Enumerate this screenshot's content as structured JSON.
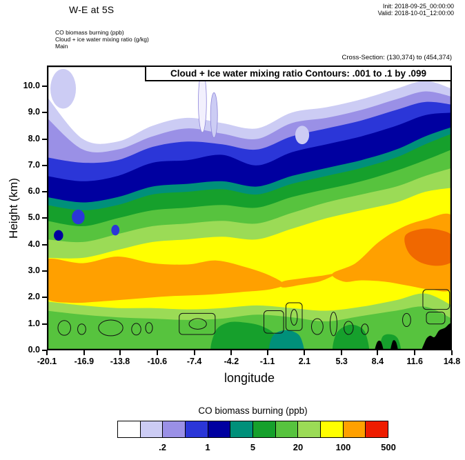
{
  "header": {
    "title": "W-E at 5S",
    "init": "Init: 2018-09-25_00:00:00",
    "valid": "Valid: 2018-10-01_12:00:00",
    "legend_lines": [
      "CO biomass burning (ppb)",
      "Cloud + ice water mixing ratio (g/kg)",
      "Main"
    ],
    "cross_section": "Cross-Section: (130,374) to (454,374)"
  },
  "plot": {
    "inner_title": "Cloud + Ice water mixing ratio Contours: .001 to .1 by .099",
    "xlabel": "longitude",
    "ylabel": "Height (km)"
  },
  "colorbar": {
    "title": "CO biomass burning  (ppb)",
    "labels": [
      ".2",
      "1",
      "5",
      "20",
      "100",
      "500"
    ],
    "colors": [
      "#ffffff",
      "#ccccf4",
      "#9a90e6",
      "#2b36d8",
      "#0000a0",
      "#00907a",
      "#16a02c",
      "#57c33e",
      "#9bdb56",
      "#ffff00",
      "#ffa000",
      "#ee1c00"
    ]
  },
  "chart_data": {
    "type": "heatmap",
    "description": "West-East vertical cross-section at 5S: CO biomass burning concentration (ppb, filled color bands, log levels) with cloud + ice water mixing ratio contours (.001 to .1 by .099 g/kg) overlaid as thin black lines; black areas are terrain",
    "xlabel": "longitude",
    "ylabel": "Height (km)",
    "xlim": [
      -20.1,
      14.8
    ],
    "ylim": [
      0,
      10.78
    ],
    "x_ticks": [
      "-20.1",
      "-16.9",
      "-13.8",
      "-10.6",
      "-7.4",
      "-4.2",
      "-1.1",
      "2.1",
      "5.3",
      "8.4",
      "11.6",
      "14.8"
    ],
    "y_ticks": [
      "0.0",
      "1.0",
      "2.0",
      "3.0",
      "4.0",
      "5.0",
      "6.0",
      "7.0",
      "8.0",
      "9.0",
      "10.0"
    ],
    "color_levels_ppb": [
      0.1,
      0.2,
      0.5,
      1,
      2,
      5,
      10,
      20,
      50,
      100,
      200,
      500
    ],
    "band_lons": [
      -20.1,
      -17,
      -14,
      -11,
      -8,
      -5,
      -2,
      1,
      4,
      7,
      10,
      12.5,
      14.8
    ],
    "layers": [
      {
        "name": "band-02-lavender",
        "type": "band",
        "color": 1,
        "top": [
          9.6,
          8.0,
          7.9,
          8.5,
          8.8,
          8.6,
          8.4,
          9.0,
          9.2,
          9.5,
          9.9,
          10.2,
          9.9
        ]
      },
      {
        "name": "lavender-top-patch",
        "type": "ellipse",
        "hex": "#ccccf4",
        "cx": -18.7,
        "cy": 9.9,
        "rx": 1.1,
        "ry": 0.75
      },
      {
        "name": "band-03-purple",
        "type": "band",
        "color": 2,
        "top": [
          8.8,
          7.6,
          7.6,
          8.1,
          8.4,
          8.2,
          8.0,
          8.6,
          8.8,
          9.1,
          9.5,
          9.8,
          9.6
        ]
      },
      {
        "name": "band-04-blue",
        "type": "band",
        "color": 3,
        "top": [
          7.3,
          7.1,
          7.2,
          7.7,
          7.9,
          7.8,
          7.6,
          8.1,
          8.4,
          8.7,
          9.1,
          9.4,
          9.3
        ]
      },
      {
        "name": "band-05-darkblue",
        "type": "band",
        "color": 4,
        "top": [
          6.6,
          6.4,
          6.6,
          7.1,
          7.2,
          7.4,
          7.0,
          7.5,
          7.8,
          8.1,
          8.5,
          8.9,
          9.0
        ]
      },
      {
        "name": "band-06-teal",
        "type": "band",
        "color": 5,
        "top": [
          5.8,
          5.6,
          5.8,
          6.2,
          6.3,
          6.4,
          6.2,
          6.6,
          6.9,
          7.2,
          7.6,
          8.1,
          8.45
        ]
      },
      {
        "name": "band-07-green",
        "type": "band",
        "color": 6,
        "top": [
          5.5,
          5.3,
          5.5,
          5.9,
          6.0,
          6.1,
          5.9,
          6.3,
          6.6,
          6.9,
          7.3,
          7.8,
          8.2
        ]
      },
      {
        "name": "band-08-midgreen",
        "type": "band",
        "color": 7,
        "top": [
          4.9,
          4.7,
          5.0,
          5.3,
          5.4,
          5.5,
          5.4,
          5.8,
          6.1,
          6.4,
          6.8,
          7.2,
          7.6
        ]
      },
      {
        "name": "band-09-lightgreen",
        "type": "band",
        "color": 8,
        "top": [
          4.2,
          4.1,
          4.4,
          4.7,
          4.8,
          4.9,
          4.8,
          5.2,
          5.6,
          5.9,
          6.2,
          6.6,
          6.9
        ]
      },
      {
        "name": "band-10-yellow",
        "type": "band",
        "color": 9,
        "top": [
          3.5,
          3.5,
          3.8,
          4.1,
          4.2,
          4.3,
          4.2,
          4.6,
          5.0,
          5.3,
          5.6,
          6.0,
          6.15
        ]
      },
      {
        "name": "orange-plume-west",
        "type": "poly",
        "color": 10,
        "pts": [
          [
            -20.1,
            3.45
          ],
          [
            -17,
            3.3
          ],
          [
            -14,
            3.55
          ],
          [
            -11,
            3.3
          ],
          [
            -8,
            3.25
          ],
          [
            -5.5,
            3.4
          ],
          [
            -3,
            3.15
          ],
          [
            -1,
            2.85
          ],
          [
            0.3,
            2.5
          ],
          [
            -1,
            2.3
          ],
          [
            -3.5,
            2.2
          ],
          [
            -6.5,
            2.1
          ],
          [
            -9.5,
            2.05
          ],
          [
            -12.5,
            1.95
          ],
          [
            -15.5,
            1.85
          ],
          [
            -18,
            1.8
          ],
          [
            -20.1,
            1.95
          ],
          [
            -20.6,
            2.7
          ]
        ]
      },
      {
        "name": "orange-filament",
        "type": "poly",
        "color": 10,
        "pts": [
          [
            0.2,
            2.6
          ],
          [
            1.8,
            2.72
          ],
          [
            3.5,
            2.82
          ],
          [
            4.8,
            2.9
          ],
          [
            3.5,
            2.62
          ],
          [
            1.8,
            2.48
          ],
          [
            0.2,
            2.38
          ]
        ]
      },
      {
        "name": "orange-plume-east",
        "type": "poly",
        "color": 10,
        "pts": [
          [
            4.5,
            2.9
          ],
          [
            6.5,
            3.3
          ],
          [
            8.5,
            4.1
          ],
          [
            10.5,
            4.65
          ],
          [
            12.5,
            4.95
          ],
          [
            14.8,
            5.1
          ],
          [
            15.4,
            3.7
          ],
          [
            14.8,
            2.35
          ],
          [
            13,
            2.3
          ],
          [
            11,
            2.45
          ],
          [
            9,
            2.6
          ],
          [
            7,
            2.65
          ],
          [
            5.5,
            2.6
          ]
        ]
      },
      {
        "name": "deep-orange-core",
        "type": "poly",
        "hex": "#f06800",
        "pts": [
          [
            10.8,
            4.35
          ],
          [
            12.3,
            4.6
          ],
          [
            13.8,
            4.55
          ],
          [
            14.8,
            4.35
          ],
          [
            15.3,
            3.8
          ],
          [
            14.8,
            3.35
          ],
          [
            13.5,
            3.2
          ],
          [
            12,
            3.35
          ],
          [
            11,
            3.75
          ]
        ]
      },
      {
        "name": "surface-lightgreen",
        "type": "band",
        "color": 8,
        "top": [
          1.85,
          1.7,
          1.6,
          1.6,
          1.55,
          1.6,
          1.7,
          1.6,
          1.5,
          1.65,
          1.9,
          2.15,
          1.7
        ]
      },
      {
        "name": "surface-green",
        "type": "band",
        "color": 7,
        "top": [
          1.5,
          1.35,
          1.25,
          1.2,
          1.15,
          1.2,
          1.35,
          1.25,
          1.1,
          1.3,
          1.5,
          1.65,
          1.2
        ]
      },
      {
        "name": "surface-darkgreen-west",
        "type": "poly",
        "color": 6,
        "pts": [
          [
            -5.8,
            -0.2
          ],
          [
            -5.6,
            0.7
          ],
          [
            -4.5,
            1.05
          ],
          [
            -3,
            1.05
          ],
          [
            -1.5,
            0.9
          ],
          [
            -0.4,
            0.55
          ],
          [
            -0.1,
            -0.2
          ],
          [
            -3,
            -0.3
          ]
        ]
      },
      {
        "name": "surface-teal-patch",
        "type": "poly",
        "color": 5,
        "pts": [
          [
            -0.9,
            -0.2
          ],
          [
            -0.7,
            0.5
          ],
          [
            0.2,
            0.75
          ],
          [
            1.2,
            0.7
          ],
          [
            1.8,
            0.45
          ],
          [
            2.0,
            -0.2
          ],
          [
            0.5,
            -0.3
          ]
        ]
      },
      {
        "name": "surface-darkgreen-east",
        "type": "poly",
        "color": 6,
        "pts": [
          [
            4.6,
            -0.2
          ],
          [
            4.8,
            0.6
          ],
          [
            5.8,
            0.95
          ],
          [
            6.8,
            0.9
          ],
          [
            7.4,
            0.6
          ],
          [
            7.6,
            -0.2
          ],
          [
            6.1,
            -0.3
          ]
        ]
      },
      {
        "name": "surface-darkgreen-far-east",
        "type": "poly",
        "color": 6,
        "pts": [
          [
            8.6,
            -0.2
          ],
          [
            8.8,
            0.5
          ],
          [
            9.6,
            0.6
          ],
          [
            10.2,
            0.4
          ],
          [
            10.4,
            -0.2
          ],
          [
            9.5,
            -0.3
          ]
        ]
      },
      {
        "name": "terrain-east",
        "type": "poly",
        "hex": "#000000",
        "pts": [
          [
            12.1,
            -0.3
          ],
          [
            12.5,
            0.35
          ],
          [
            12.9,
            0.55
          ],
          [
            13.3,
            0.5
          ],
          [
            13.7,
            0.75
          ],
          [
            14.2,
            0.85
          ],
          [
            14.8,
            1.0
          ],
          [
            15.3,
            0.3
          ],
          [
            14.8,
            -0.3
          ],
          [
            13.5,
            -0.4
          ]
        ]
      },
      {
        "name": "terrain-bump-1",
        "type": "poly",
        "hex": "#000000",
        "pts": [
          [
            8.15,
            -0.15
          ],
          [
            8.35,
            0.3
          ],
          [
            8.7,
            0.32
          ],
          [
            8.9,
            -0.15
          ]
        ]
      },
      {
        "name": "terrain-bump-2",
        "type": "poly",
        "hex": "#000000",
        "pts": [
          [
            9.5,
            -0.15
          ],
          [
            9.7,
            0.35
          ],
          [
            10.0,
            0.3
          ],
          [
            10.15,
            -0.15
          ]
        ]
      },
      {
        "name": "cloud-streak-1",
        "type": "ellipse",
        "hex": "#f2f0fd",
        "stroke": "#8d84da",
        "cx": -6.7,
        "cy": 9.4,
        "rx": 0.35,
        "ry": 1.15
      },
      {
        "name": "cloud-streak-2",
        "type": "ellipse",
        "hex": "#ccccf4",
        "stroke": "#8d84da",
        "cx": -5.7,
        "cy": 8.9,
        "rx": 0.3,
        "ry": 0.85
      },
      {
        "name": "cloud-streak-3",
        "type": "ellipse",
        "hex": "#ffffff",
        "cx": -3.3,
        "cy": 9.6,
        "rx": 0.5,
        "ry": 0.7
      },
      {
        "name": "lavender-pocket",
        "type": "ellipse",
        "hex": "#ccccf4",
        "cx": 1.9,
        "cy": 8.15,
        "rx": 0.6,
        "ry": 0.35
      },
      {
        "name": "cloud-blue-speck-1",
        "type": "ellipse",
        "hex": "#0000a0",
        "cx": -19.1,
        "cy": 4.35,
        "rx": 0.4,
        "ry": 0.2
      },
      {
        "name": "cloud-blue-speck-2",
        "type": "ellipse",
        "hex": "#2b36d8",
        "cx": -17.4,
        "cy": 5.05,
        "rx": 0.55,
        "ry": 0.28
      },
      {
        "name": "cloud-blue-speck-3",
        "type": "ellipse",
        "hex": "#2b36d8",
        "cx": -14.2,
        "cy": 4.55,
        "rx": 0.35,
        "ry": 0.2
      }
    ],
    "cloud_contours": [
      {
        "t": "e",
        "cx": -18.6,
        "cy": 0.85,
        "rx": 0.55,
        "ry": 0.28
      },
      {
        "t": "e",
        "cx": -17.1,
        "cy": 0.8,
        "rx": 0.35,
        "ry": 0.2
      },
      {
        "t": "e",
        "cx": -14.6,
        "cy": 0.85,
        "rx": 1.05,
        "ry": 0.3
      },
      {
        "t": "e",
        "cx": -12.4,
        "cy": 0.8,
        "rx": 0.4,
        "ry": 0.22
      },
      {
        "t": "e",
        "cx": -11.3,
        "cy": 0.85,
        "rx": 0.3,
        "ry": 0.2
      },
      {
        "t": "r",
        "x": -8.7,
        "y": 0.6,
        "w": 3.1,
        "h": 0.8
      },
      {
        "t": "e",
        "cx": -7.1,
        "cy": 1.0,
        "rx": 0.75,
        "ry": 0.2
      },
      {
        "t": "r",
        "x": -1.4,
        "y": 0.65,
        "w": 1.7,
        "h": 0.85
      },
      {
        "t": "r",
        "x": 0.5,
        "y": 0.75,
        "w": 1.4,
        "h": 1.05
      },
      {
        "t": "e",
        "cx": 1.2,
        "cy": 1.25,
        "rx": 0.28,
        "ry": 0.3
      },
      {
        "t": "e",
        "cx": 3.2,
        "cy": 0.9,
        "rx": 0.5,
        "ry": 0.3
      },
      {
        "t": "e",
        "cx": 4.6,
        "cy": 1.0,
        "rx": 0.3,
        "ry": 0.45
      },
      {
        "t": "e",
        "cx": 5.9,
        "cy": 0.85,
        "rx": 0.4,
        "ry": 0.25
      },
      {
        "t": "e",
        "cx": 7.3,
        "cy": 0.8,
        "rx": 0.3,
        "ry": 0.2
      },
      {
        "t": "e",
        "cx": 10.9,
        "cy": 1.15,
        "rx": 0.35,
        "ry": 0.25
      },
      {
        "t": "r",
        "x": 12.3,
        "y": 1.55,
        "w": 2.3,
        "h": 0.75
      },
      {
        "t": "r",
        "x": 12.6,
        "y": 1.0,
        "w": 1.6,
        "h": 0.45
      }
    ]
  }
}
